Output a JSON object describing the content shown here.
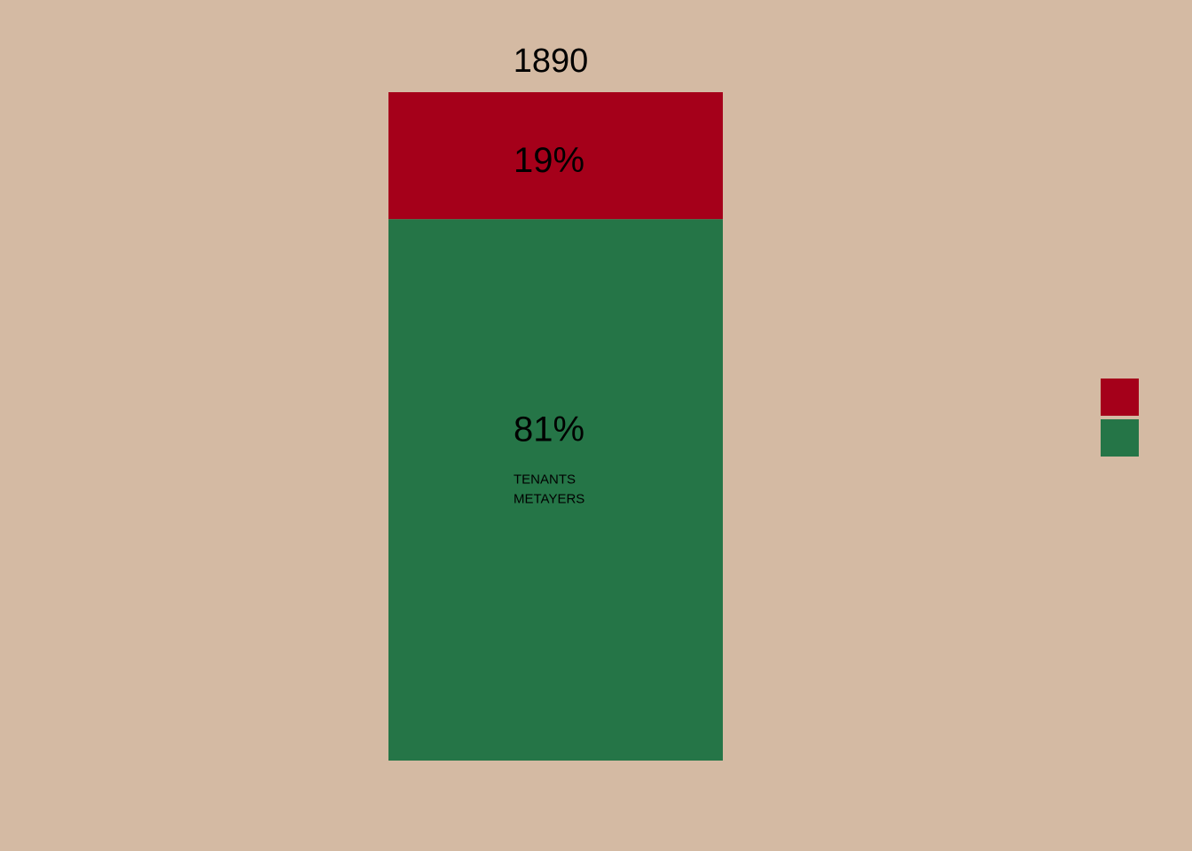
{
  "background_color": "#d4baa3",
  "chart_data": {
    "type": "bar",
    "stacked": true,
    "normalized": true,
    "categories": [
      "1890"
    ],
    "series": [
      {
        "values": [
          19
        ],
        "label": "19%",
        "color": "#a5001a"
      },
      {
        "values": [
          81
        ],
        "label": "81%",
        "color": "#257547"
      }
    ],
    "annotation_lines": [
      "TENANTS",
      "METAYERS"
    ],
    "legend": {
      "position": "right"
    },
    "ylim": [
      0,
      100
    ],
    "grid": false
  }
}
